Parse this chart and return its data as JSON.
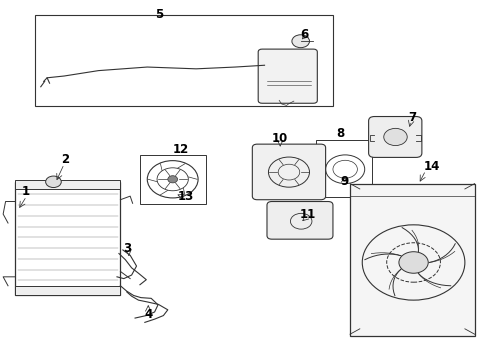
{
  "bg_color": "#ffffff",
  "line_color": "#333333",
  "label_color": "#000000"
}
